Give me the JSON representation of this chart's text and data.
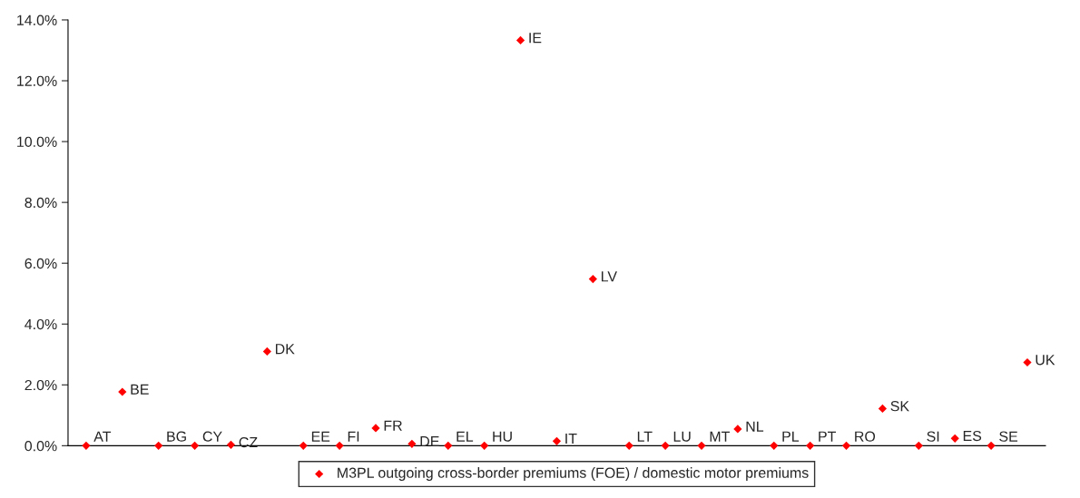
{
  "chart_data": {
    "type": "scatter",
    "categories": [
      null,
      null,
      null,
      null,
      null,
      null,
      null,
      null,
      null,
      null,
      null,
      null,
      null,
      null,
      null,
      null,
      null,
      null,
      null,
      null,
      null,
      null,
      null,
      null,
      null,
      null,
      null
    ],
    "series": [
      {
        "name": "M3PL outgoing cross-border premiums (FOE) / domestic motor premiums",
        "color": "#ff0000",
        "values": [
          0,
          1.77,
          0,
          0,
          0.03,
          3.1,
          0,
          0,
          0.58,
          0.06,
          0,
          0,
          13.33,
          0.15,
          5.48,
          0,
          0,
          0,
          0.55,
          0,
          0,
          0,
          1.22,
          0,
          0.24,
          0,
          2.74
        ],
        "value_labels": [
          "AT",
          "BE",
          "BG",
          "CY",
          "CZ",
          "DK",
          "EE",
          "FI",
          "FR",
          "DE",
          "EL",
          "HU",
          "IE",
          "IT",
          "LV",
          "LT",
          "LU",
          "MT",
          "NL",
          "PL",
          "PT",
          "RO",
          "SK",
          "SI",
          "ES",
          "SE",
          "UK"
        ]
      }
    ],
    "ylim": [
      0,
      14
    ],
    "yticks": [
      {
        "value": 0,
        "label": "0.0%"
      },
      {
        "value": 2,
        "label": "2.0%"
      },
      {
        "value": 4,
        "label": "4.0%"
      },
      {
        "value": 6,
        "label": "6.0%"
      },
      {
        "value": 8,
        "label": "8.0%"
      },
      {
        "value": 10,
        "label": "10.0%"
      },
      {
        "value": 12,
        "label": "12.0%"
      },
      {
        "value": 14,
        "label": "14.0%"
      }
    ],
    "tick_labels": "y",
    "grid": false,
    "legend": "bottom",
    "marker": "diamond"
  }
}
